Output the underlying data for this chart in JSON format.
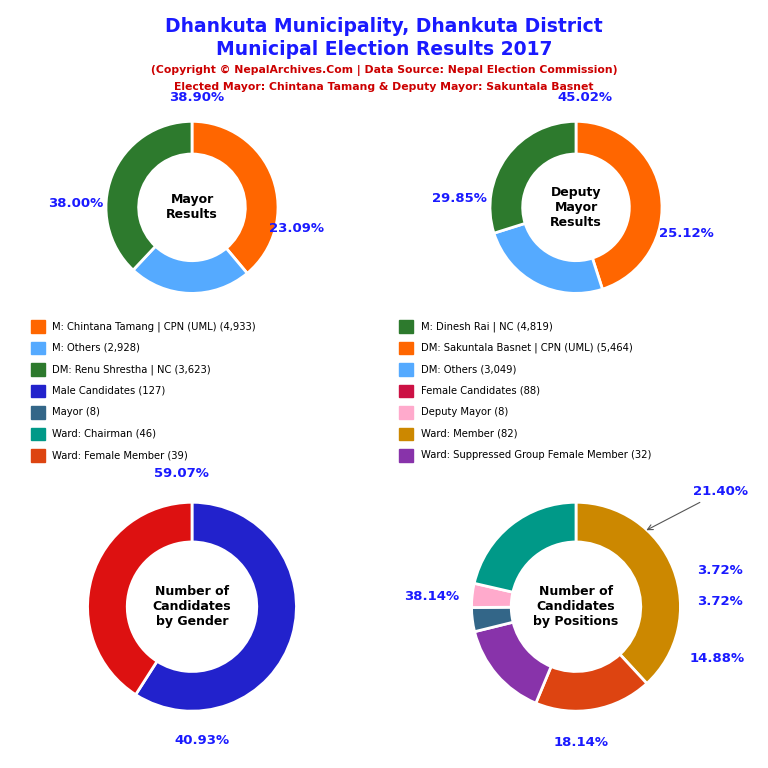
{
  "title_line1": "Dhankuta Municipality, Dhankuta District",
  "title_line2": "Municipal Election Results 2017",
  "subtitle1": "(Copyright © NepalArchives.Com | Data Source: Nepal Election Commission)",
  "subtitle2": "Elected Mayor: Chintana Tamang & Deputy Mayor: Sakuntala Basnet",
  "title_color": "#1a1aff",
  "subtitle_color": "#cc0000",
  "mayor_values": [
    38.9,
    23.09,
    38.0
  ],
  "mayor_colors": [
    "#ff6600",
    "#55aaff",
    "#2d7a2d"
  ],
  "mayor_labels": [
    "38.90%",
    "23.09%",
    "38.00%"
  ],
  "mayor_center_text": "Mayor\nResults",
  "deputy_values": [
    45.02,
    25.12,
    29.85
  ],
  "deputy_colors": [
    "#ff6600",
    "#55aaff",
    "#2d7a2d"
  ],
  "deputy_labels": [
    "45.02%",
    "25.12%",
    "29.85%"
  ],
  "deputy_center_text": "Deputy\nMayor\nResults",
  "gender_values": [
    59.07,
    40.93
  ],
  "gender_colors": [
    "#2222cc",
    "#dd1111"
  ],
  "gender_labels": [
    "59.07%",
    "40.93%"
  ],
  "gender_center_text": "Number of\nCandidates\nby Gender",
  "positions_values": [
    38.14,
    18.14,
    14.88,
    3.72,
    3.72,
    21.4
  ],
  "positions_colors": [
    "#cc8800",
    "#dd4411",
    "#8833aa",
    "#336688",
    "#ffaacc",
    "#009988"
  ],
  "positions_labels": [
    "38.14%",
    "18.14%",
    "14.88%",
    "3.72%",
    "3.72%",
    "21.40%"
  ],
  "positions_center_text": "Number of\nCandidates\nby Positions",
  "legend_left": [
    {
      "label": "M: Chintana Tamang | CPN (UML) (4,933)",
      "color": "#ff6600"
    },
    {
      "label": "M: Others (2,928)",
      "color": "#55aaff"
    },
    {
      "label": "DM: Renu Shrestha | NC (3,623)",
      "color": "#2d7a2d"
    },
    {
      "label": "Male Candidates (127)",
      "color": "#2222cc"
    },
    {
      "label": "Mayor (8)",
      "color": "#336688"
    },
    {
      "label": "Ward: Chairman (46)",
      "color": "#009988"
    },
    {
      "label": "Ward: Female Member (39)",
      "color": "#dd4411"
    }
  ],
  "legend_right": [
    {
      "label": "M: Dinesh Rai | NC (4,819)",
      "color": "#2d7a2d"
    },
    {
      "label": "DM: Sakuntala Basnet | CPN (UML) (5,464)",
      "color": "#ff6600"
    },
    {
      "label": "DM: Others (3,049)",
      "color": "#55aaff"
    },
    {
      "label": "Female Candidates (88)",
      "color": "#cc1144"
    },
    {
      "label": "Deputy Mayor (8)",
      "color": "#ffaacc"
    },
    {
      "label": "Ward: Member (82)",
      "color": "#cc8800"
    },
    {
      "label": "Ward: Suppressed Group Female Member (32)",
      "color": "#8833aa"
    }
  ]
}
